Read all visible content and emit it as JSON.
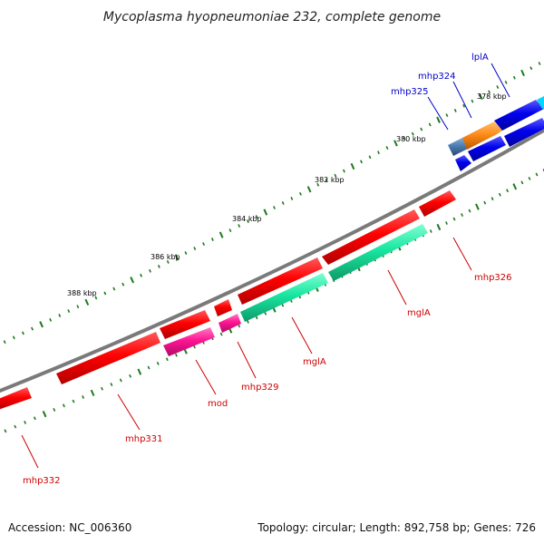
{
  "header": {
    "title": "Mycoplasma hyopneumoniae 232, complete genome"
  },
  "footer": {
    "accession": "Accession: NC_006360",
    "summary": "Topology: circular; Length: 892,758 bp; Genes: 726"
  },
  "ticks": [
    {
      "label": "378 kbp"
    },
    {
      "label": "380 kbp"
    },
    {
      "label": "382 kbp"
    },
    {
      "label": "384 kbp"
    },
    {
      "label": "386 kbp"
    },
    {
      "label": "388 kbp"
    }
  ],
  "genes": [
    {
      "name": "lplA",
      "strand": "forward",
      "color": "#0000ee"
    },
    {
      "name": "mhp324",
      "strand": "forward",
      "color": "#ff8c1a"
    },
    {
      "name": "mhp325",
      "strand": "forward",
      "color": "#4a7ab0"
    },
    {
      "name": "mhp326",
      "strand": "reverse",
      "color": "#ff0000"
    },
    {
      "name": "mglA",
      "strand": "reverse",
      "color": "#ff0000"
    },
    {
      "name": "mglA",
      "strand": "reverse",
      "color": "#19e6a0"
    },
    {
      "name": "mhp329",
      "strand": "reverse",
      "color": "#ff1493"
    },
    {
      "name": "mod",
      "strand": "reverse",
      "color": "#ff1493"
    },
    {
      "name": "mhp331",
      "strand": "reverse",
      "color": "#ff0000"
    },
    {
      "name": "mhp332",
      "strand": "reverse",
      "color": "#ff0000"
    }
  ],
  "colors": {
    "backbone": "#7a7a7a",
    "tick": "#1a7a1a",
    "forward_label": "#0000cc",
    "reverse_label": "#cc0000"
  }
}
